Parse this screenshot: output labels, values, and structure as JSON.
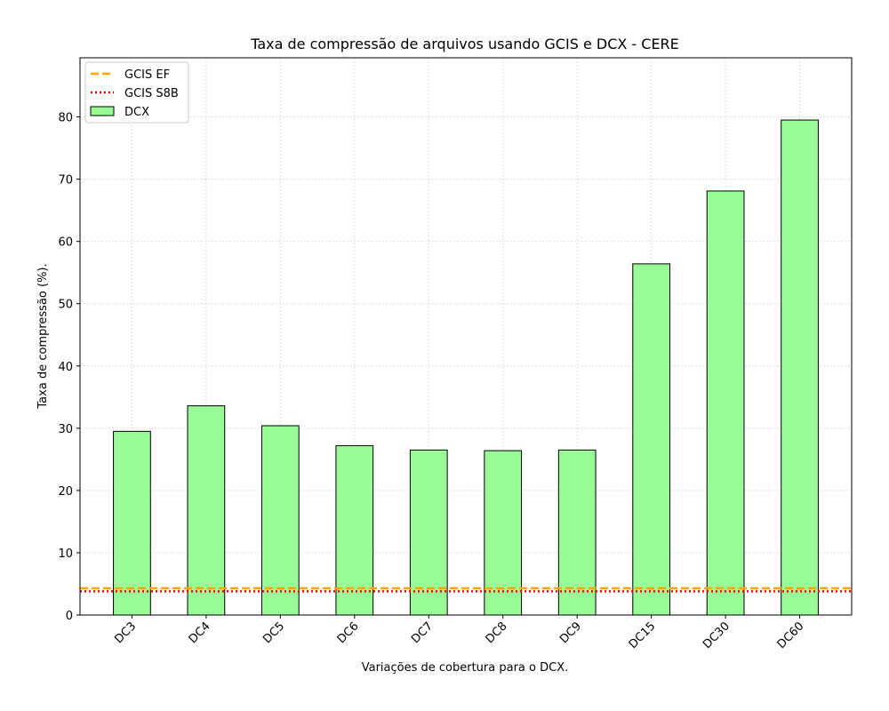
{
  "chart_data": {
    "type": "bar",
    "title": "Taxa de compressão de arquivos usando GCIS e DCX -  CERE",
    "xlabel": "Variações de cobertura para o DCX.",
    "ylabel": "Taxa de compressão (%).",
    "categories": [
      "DC3",
      "DC4",
      "DC5",
      "DC6",
      "DC7",
      "DC8",
      "DC9",
      "DC15",
      "DC30",
      "DC60"
    ],
    "series": [
      {
        "name": "DCX",
        "values": [
          29.5,
          33.6,
          30.4,
          27.2,
          26.5,
          26.4,
          26.5,
          56.4,
          68.1,
          79.5
        ],
        "color": "#98fb98",
        "edge": "#000000"
      }
    ],
    "hlines": [
      {
        "name": "GCIS EF",
        "value": 4.3,
        "style": "dashed",
        "color": "#ffa500"
      },
      {
        "name": "GCIS S8B",
        "value": 3.8,
        "style": "dotted",
        "color": "#ff0000"
      }
    ],
    "ylim": [
      0,
      89.5
    ],
    "yticks": [
      0,
      10,
      20,
      30,
      40,
      50,
      60,
      70,
      80
    ],
    "grid": true,
    "legend_position": "top-left"
  }
}
